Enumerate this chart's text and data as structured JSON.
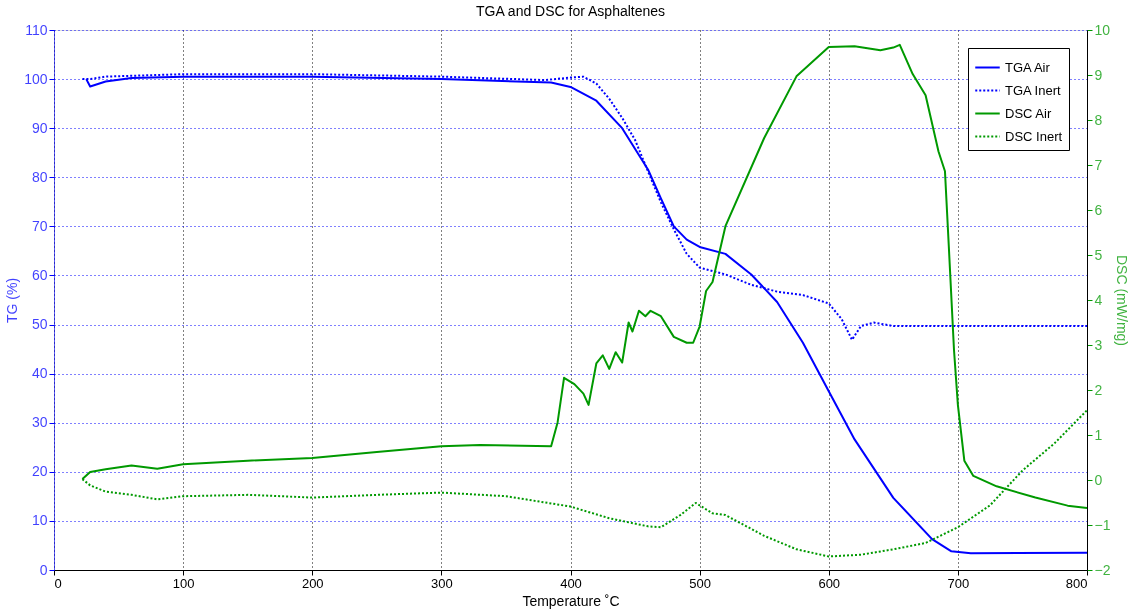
{
  "chart_data": {
    "type": "line",
    "title": "TGA and DSC for Asphaltenes",
    "xlabel": "Temperature ˚C",
    "ylabel": "TG (%)",
    "y2label": "DSC (mW/mg)",
    "xlim": [
      0,
      800
    ],
    "xticks": [
      0,
      100,
      200,
      300,
      400,
      500,
      600,
      700,
      800
    ],
    "ylim": [
      0,
      110
    ],
    "yticks": [
      0,
      10,
      20,
      30,
      40,
      50,
      60,
      70,
      80,
      90,
      100,
      110
    ],
    "y2lim": [
      -2,
      10
    ],
    "y2ticks": [
      -2,
      -1,
      0,
      1,
      2,
      3,
      4,
      5,
      6,
      7,
      8,
      9,
      10
    ],
    "grid": true,
    "legend": "top right",
    "series": [
      {
        "name": "TGA Air",
        "color": "#0000ff",
        "line_style": "solid",
        "x": [
          25,
          28,
          40,
          60,
          100,
          200,
          300,
          385,
          400,
          420,
          440,
          460,
          470,
          480,
          490,
          500,
          520,
          540,
          560,
          580,
          600,
          620,
          650,
          680,
          695,
          710,
          800
        ],
        "values": [
          100,
          98.5,
          99.5,
          100.2,
          100.5,
          100.5,
          100,
          99.3,
          98.4,
          95.6,
          90,
          81.6,
          75.7,
          70,
          67.3,
          65.8,
          64.4,
          60.2,
          54.6,
          46.3,
          36.4,
          26.6,
          14.7,
          6.3,
          3.8,
          3.4,
          3.5
        ]
      },
      {
        "name": "TGA Inert",
        "color": "#0000ff",
        "line_style": "dotted",
        "x": [
          22,
          28,
          40,
          100,
          200,
          300,
          380,
          400,
          410,
          420,
          430,
          440,
          450,
          460,
          470,
          480,
          490,
          500,
          520,
          540,
          560,
          580,
          600,
          610,
          618,
          625,
          635,
          650,
          800
        ],
        "values": [
          100,
          100,
          100.5,
          101,
          101,
          100.5,
          99.8,
          100.3,
          100.5,
          99.1,
          96,
          92.1,
          87.6,
          81.2,
          74.9,
          69.4,
          64.4,
          61.6,
          60.2,
          58.1,
          56.7,
          56,
          54.3,
          51.1,
          46.9,
          49.7,
          50.4,
          49.7,
          49.7
        ]
      },
      {
        "name": "DSC Air",
        "color": "#009900",
        "line_style": "solid",
        "axis": "y2",
        "x": [
          22,
          28,
          40,
          60,
          80,
          100,
          150,
          200,
          250,
          300,
          330,
          385,
          390,
          395,
          403,
          410,
          414,
          420,
          425,
          430,
          435,
          440,
          445,
          448,
          453,
          458,
          462,
          470,
          480,
          490,
          495,
          500,
          505,
          510,
          520,
          550,
          575,
          600,
          620,
          640,
          650,
          655,
          665,
          675,
          685,
          690,
          693,
          697,
          700,
          705,
          712,
          730,
          760,
          785,
          800
        ],
        "values": [
          0.02,
          0.18,
          0.24,
          0.32,
          0.25,
          0.35,
          0.43,
          0.49,
          0.62,
          0.75,
          0.78,
          0.75,
          1.28,
          2.27,
          2.13,
          1.92,
          1.67,
          2.59,
          2.77,
          2.47,
          2.84,
          2.61,
          3.5,
          3.3,
          3.76,
          3.64,
          3.76,
          3.64,
          3.18,
          3.05,
          3.05,
          3.41,
          4.2,
          4.4,
          5.64,
          7.6,
          8.97,
          9.62,
          9.64,
          9.55,
          9.61,
          9.67,
          9.02,
          8.55,
          7.3,
          6.86,
          5.18,
          2.89,
          1.67,
          0.43,
          0.09,
          -0.14,
          -0.39,
          -0.57,
          -0.62
        ]
      },
      {
        "name": "DSC Inert",
        "color": "#009900",
        "line_style": "dotted",
        "axis": "y2",
        "x": [
          22,
          28,
          40,
          60,
          80,
          100,
          150,
          200,
          250,
          300,
          350,
          400,
          430,
          460,
          470,
          485,
          497,
          510,
          520,
          550,
          575,
          600,
          625,
          650,
          675,
          700,
          725,
          750,
          775,
          800
        ],
        "values": [
          0.02,
          -0.12,
          -0.26,
          -0.33,
          -0.43,
          -0.36,
          -0.33,
          -0.39,
          -0.33,
          -0.28,
          -0.36,
          -0.59,
          -0.85,
          -1.03,
          -1.05,
          -0.78,
          -0.51,
          -0.74,
          -0.78,
          -1.24,
          -1.54,
          -1.7,
          -1.66,
          -1.54,
          -1.4,
          -1.05,
          -0.56,
          0.21,
          0.82,
          1.55
        ]
      }
    ]
  }
}
